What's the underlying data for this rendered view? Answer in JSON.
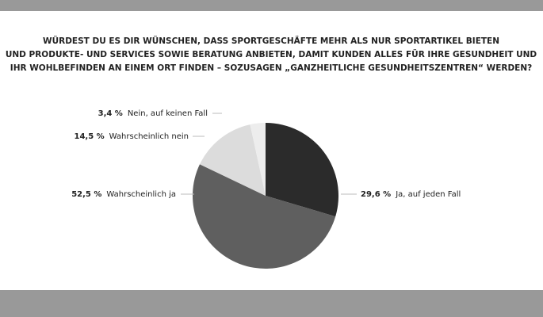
{
  "chart_data": {
    "type": "pie",
    "title": [
      "WÜRDEST DU ES DIR WÜNSCHEN, DASS SPORTGESCHÄFTE MEHR ALS NUR SPORTARTIKEL BIETEN",
      "UND PRODUKTE- UND SERVICES SOWIE BERATUNG ANBIETEN, DAMIT KUNDEN ALLES FÜR IHRE GESUNDHEIT UND",
      "IHR WOHLBEFINDEN AN EINEM ORT FINDEN – SOZUSAGEN „GANZHEITLICHE GESUNDHEITSZENTREN“ WERDEN?"
    ],
    "categories": [
      "Ja, auf jeden Fall",
      "Wahrscheinlich ja",
      "Wahrscheinlich nein",
      "Nein, auf keinen Fall"
    ],
    "values": [
      29.6,
      52.5,
      14.5,
      3.4
    ],
    "value_labels": [
      "29,6 %",
      "52,5 %",
      "14,5 %",
      "3,4 %"
    ],
    "colors": [
      "#2b2b2b",
      "#5f5f5f",
      "#dcdcdc",
      "#ededed"
    ]
  }
}
